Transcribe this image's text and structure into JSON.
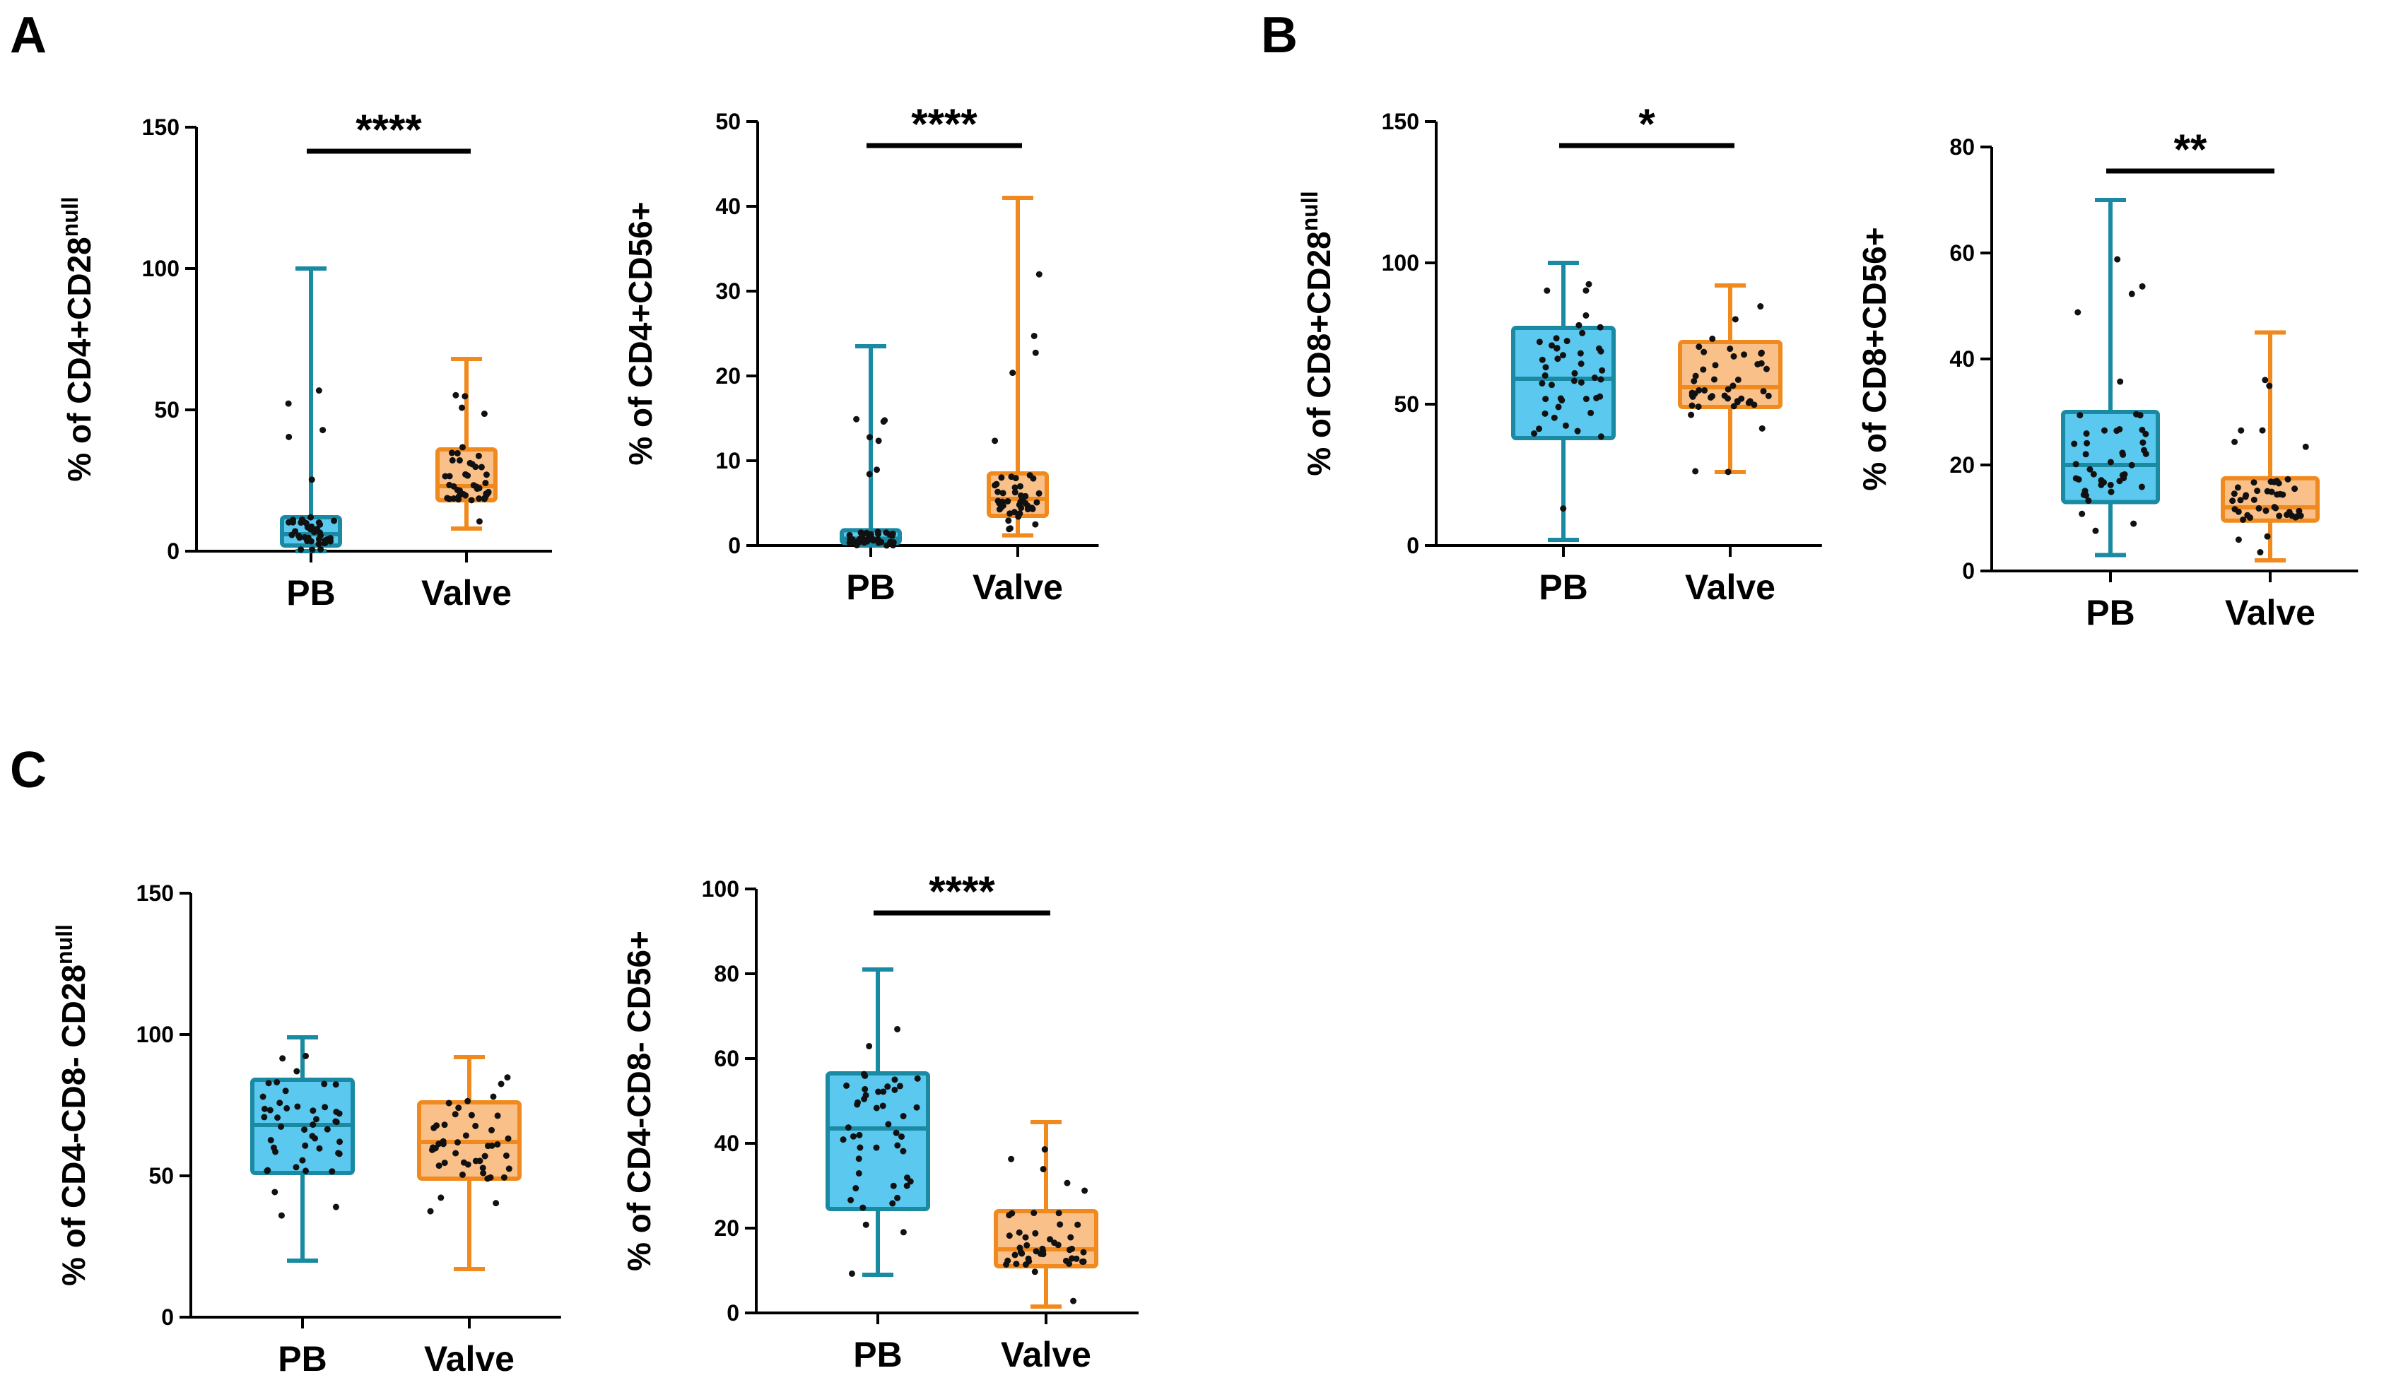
{
  "panels": [
    "A",
    "B",
    "C"
  ],
  "colors": {
    "pb_fill": "#5BC8F0",
    "pb_edge": "#1A8AA3",
    "valve_fill": "#F9C08A",
    "valve_edge": "#F08A1E",
    "dot": "#111111",
    "axis": "#000000"
  },
  "chart_data": [
    {
      "type": "box",
      "panel": "A",
      "ylabel": "% of CD4+CD28",
      "ylabel_sup": "null",
      "ylim": [
        0,
        150
      ],
      "yticks": [
        0,
        50,
        100,
        150
      ],
      "categories": [
        "PB",
        "Valve"
      ],
      "series": [
        {
          "name": "PB",
          "min": 0,
          "q1": 2,
          "median": 6,
          "q3": 12,
          "max": 100
        },
        {
          "name": "Valve",
          "min": 8,
          "q1": 18,
          "median": 23,
          "q3": 36,
          "max": 68
        }
      ],
      "significance": "****"
    },
    {
      "type": "box",
      "panel": "A",
      "ylabel": "% of CD4+CD56+",
      "ylabel_sup": "",
      "ylim": [
        0,
        50
      ],
      "yticks": [
        0,
        10,
        20,
        30,
        40,
        50
      ],
      "categories": [
        "PB",
        "Valve"
      ],
      "series": [
        {
          "name": "PB",
          "min": 0,
          "q1": 0.3,
          "median": 0.8,
          "q3": 1.8,
          "max": 23.5
        },
        {
          "name": "Valve",
          "min": 1.2,
          "q1": 3.5,
          "median": 5.5,
          "q3": 8.5,
          "max": 41
        }
      ],
      "significance": "****"
    },
    {
      "type": "box",
      "panel": "B",
      "ylabel": "% of CD8+CD28",
      "ylabel_sup": "null",
      "ylim": [
        0,
        150
      ],
      "yticks": [
        0,
        50,
        100,
        150
      ],
      "categories": [
        "PB",
        "Valve"
      ],
      "series": [
        {
          "name": "PB",
          "min": 2,
          "q1": 38,
          "median": 59,
          "q3": 77,
          "max": 100
        },
        {
          "name": "Valve",
          "min": 26,
          "q1": 49,
          "median": 56,
          "q3": 72,
          "max": 92
        }
      ],
      "significance": "*"
    },
    {
      "type": "box",
      "panel": "B",
      "ylabel": "% of CD8+CD56+",
      "ylabel_sup": "",
      "ylim": [
        0,
        80
      ],
      "yticks": [
        0,
        20,
        40,
        60,
        80
      ],
      "categories": [
        "PB",
        "Valve"
      ],
      "series": [
        {
          "name": "PB",
          "min": 3,
          "q1": 13,
          "median": 20,
          "q3": 30,
          "max": 70
        },
        {
          "name": "Valve",
          "min": 2,
          "q1": 9.5,
          "median": 12,
          "q3": 17.5,
          "max": 45
        }
      ],
      "significance": "**"
    },
    {
      "type": "box",
      "panel": "C",
      "ylabel": "% of CD4-CD8- CD28",
      "ylabel_sup": "null",
      "ylim": [
        0,
        150
      ],
      "yticks": [
        0,
        50,
        100,
        150
      ],
      "categories": [
        "PB",
        "Valve"
      ],
      "series": [
        {
          "name": "PB",
          "min": 20,
          "q1": 51,
          "median": 68,
          "q3": 84,
          "max": 99
        },
        {
          "name": "Valve",
          "min": 17,
          "q1": 49,
          "median": 62,
          "q3": 76,
          "max": 92
        }
      ],
      "significance": ""
    },
    {
      "type": "box",
      "panel": "C",
      "ylabel": "% of CD4-CD8- CD56+",
      "ylabel_sup": "",
      "ylim": [
        0,
        100
      ],
      "yticks": [
        0,
        20,
        40,
        60,
        80,
        100
      ],
      "categories": [
        "PB",
        "Valve"
      ],
      "series": [
        {
          "name": "PB",
          "min": 9,
          "q1": 24.5,
          "median": 43.5,
          "q3": 56.5,
          "max": 81
        },
        {
          "name": "Valve",
          "min": 1.5,
          "q1": 11,
          "median": 15,
          "q3": 24,
          "max": 45
        }
      ],
      "significance": "****"
    }
  ]
}
